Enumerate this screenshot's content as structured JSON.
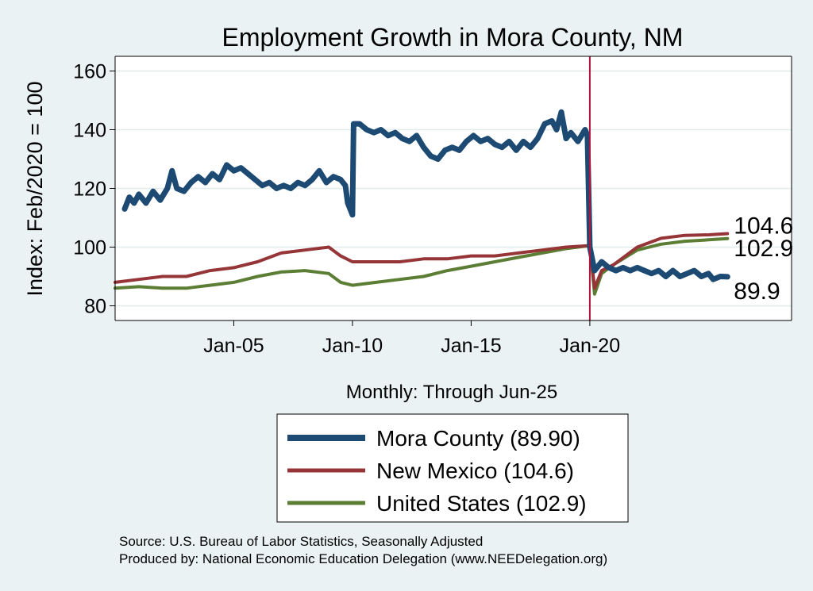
{
  "colors": {
    "title": "#1f3c66",
    "background": "#eaf2f3",
    "plot_background": "#ffffff",
    "grid": "#e1ecee",
    "event_line": "#b5133d"
  },
  "chart_data": {
    "type": "line",
    "title": "Employment Growth in Mora  County, NM",
    "xlabel": "Monthly: Through Jun-25",
    "ylabel": "Index: Feb/2020 = 100",
    "x_start_year": 2000.0,
    "x_end_year": 2028.0,
    "xlim": [
      2000.0,
      2028.5
    ],
    "ylim": [
      75,
      165
    ],
    "yticks": [
      80,
      100,
      120,
      140,
      160
    ],
    "xticks": [
      {
        "year": 2005.0,
        "label": "Jan-05"
      },
      {
        "year": 2010.0,
        "label": "Jan-10"
      },
      {
        "year": 2015.0,
        "label": "Jan-15"
      },
      {
        "year": 2020.0,
        "label": "Jan-20"
      }
    ],
    "event_line_year": 2020.0,
    "series": [
      {
        "name": "Mora  County",
        "legend": "Mora  County (89.90)",
        "end_label": "89.9",
        "color": "#1c4a73",
        "width": 7,
        "points": [
          [
            2000.4,
            113
          ],
          [
            2000.6,
            117
          ],
          [
            2000.8,
            115
          ],
          [
            2001.0,
            118
          ],
          [
            2001.3,
            115
          ],
          [
            2001.6,
            119
          ],
          [
            2001.9,
            116
          ],
          [
            2002.2,
            120
          ],
          [
            2002.4,
            126
          ],
          [
            2002.6,
            120
          ],
          [
            2002.9,
            119
          ],
          [
            2003.2,
            122
          ],
          [
            2003.5,
            124
          ],
          [
            2003.8,
            122
          ],
          [
            2004.1,
            125
          ],
          [
            2004.4,
            123
          ],
          [
            2004.7,
            128
          ],
          [
            2005.0,
            126
          ],
          [
            2005.3,
            127
          ],
          [
            2005.6,
            125
          ],
          [
            2005.9,
            123
          ],
          [
            2006.2,
            121
          ],
          [
            2006.5,
            122
          ],
          [
            2006.8,
            120
          ],
          [
            2007.1,
            121
          ],
          [
            2007.4,
            120
          ],
          [
            2007.7,
            122
          ],
          [
            2008.0,
            121
          ],
          [
            2008.3,
            123
          ],
          [
            2008.6,
            126
          ],
          [
            2008.9,
            122
          ],
          [
            2009.2,
            124
          ],
          [
            2009.5,
            123
          ],
          [
            2009.7,
            121
          ],
          [
            2009.8,
            115
          ],
          [
            2010.0,
            111
          ],
          [
            2010.05,
            142
          ],
          [
            2010.3,
            142
          ],
          [
            2010.6,
            140
          ],
          [
            2010.9,
            139
          ],
          [
            2011.2,
            140
          ],
          [
            2011.5,
            138
          ],
          [
            2011.8,
            139
          ],
          [
            2012.1,
            137
          ],
          [
            2012.4,
            136
          ],
          [
            2012.7,
            138
          ],
          [
            2013.0,
            134
          ],
          [
            2013.3,
            131
          ],
          [
            2013.6,
            130
          ],
          [
            2013.9,
            133
          ],
          [
            2014.2,
            134
          ],
          [
            2014.5,
            133
          ],
          [
            2014.8,
            136
          ],
          [
            2015.1,
            138
          ],
          [
            2015.4,
            136
          ],
          [
            2015.7,
            137
          ],
          [
            2016.0,
            135
          ],
          [
            2016.3,
            134
          ],
          [
            2016.6,
            136
          ],
          [
            2016.9,
            133
          ],
          [
            2017.2,
            136
          ],
          [
            2017.5,
            134
          ],
          [
            2017.8,
            137
          ],
          [
            2018.1,
            142
          ],
          [
            2018.4,
            143
          ],
          [
            2018.6,
            140
          ],
          [
            2018.8,
            146
          ],
          [
            2019.0,
            137
          ],
          [
            2019.2,
            139
          ],
          [
            2019.5,
            136
          ],
          [
            2019.8,
            140
          ],
          [
            2019.9,
            138
          ],
          [
            2020.0,
            100
          ],
          [
            2020.2,
            92
          ],
          [
            2020.5,
            95
          ],
          [
            2020.8,
            93
          ],
          [
            2021.1,
            92
          ],
          [
            2021.4,
            93
          ],
          [
            2021.7,
            92
          ],
          [
            2022.0,
            93
          ],
          [
            2022.3,
            92
          ],
          [
            2022.6,
            91
          ],
          [
            2022.9,
            92
          ],
          [
            2023.2,
            90
          ],
          [
            2023.5,
            92
          ],
          [
            2023.8,
            90
          ],
          [
            2024.1,
            91
          ],
          [
            2024.4,
            92
          ],
          [
            2024.7,
            90
          ],
          [
            2025.0,
            91
          ],
          [
            2025.2,
            89
          ],
          [
            2025.5,
            90
          ],
          [
            2025.8,
            89.9
          ]
        ]
      },
      {
        "name": "New Mexico",
        "legend": "New Mexico (104.6)",
        "end_label": "104.6",
        "color": "#963538",
        "width": 4,
        "points": [
          [
            2000.0,
            88
          ],
          [
            2001.0,
            89
          ],
          [
            2002.0,
            90
          ],
          [
            2003.0,
            90
          ],
          [
            2004.0,
            92
          ],
          [
            2005.0,
            93
          ],
          [
            2006.0,
            95
          ],
          [
            2007.0,
            98
          ],
          [
            2008.0,
            99
          ],
          [
            2009.0,
            100
          ],
          [
            2009.5,
            97
          ],
          [
            2010.0,
            95
          ],
          [
            2011.0,
            95
          ],
          [
            2012.0,
            95
          ],
          [
            2013.0,
            96
          ],
          [
            2014.0,
            96
          ],
          [
            2015.0,
            97
          ],
          [
            2016.0,
            97
          ],
          [
            2017.0,
            98
          ],
          [
            2018.0,
            99
          ],
          [
            2019.0,
            100
          ],
          [
            2020.0,
            100.5
          ],
          [
            2020.2,
            86
          ],
          [
            2020.5,
            92
          ],
          [
            2021.0,
            94
          ],
          [
            2022.0,
            100
          ],
          [
            2023.0,
            103
          ],
          [
            2024.0,
            104
          ],
          [
            2025.0,
            104.2
          ],
          [
            2025.8,
            104.6
          ]
        ]
      },
      {
        "name": "United States",
        "legend": "United States (102.9)",
        "end_label": "102.9",
        "color": "#5c7d34",
        "width": 4,
        "points": [
          [
            2000.0,
            86
          ],
          [
            2001.0,
            86.5
          ],
          [
            2002.0,
            86
          ],
          [
            2003.0,
            86
          ],
          [
            2004.0,
            87
          ],
          [
            2005.0,
            88
          ],
          [
            2006.0,
            90
          ],
          [
            2007.0,
            91.5
          ],
          [
            2008.0,
            92
          ],
          [
            2009.0,
            91
          ],
          [
            2009.5,
            88
          ],
          [
            2010.0,
            87
          ],
          [
            2011.0,
            88
          ],
          [
            2012.0,
            89
          ],
          [
            2013.0,
            90
          ],
          [
            2014.0,
            92
          ],
          [
            2015.0,
            93.5
          ],
          [
            2016.0,
            95
          ],
          [
            2017.0,
            96.5
          ],
          [
            2018.0,
            98
          ],
          [
            2019.0,
            99.5
          ],
          [
            2020.0,
            100.5
          ],
          [
            2020.2,
            84
          ],
          [
            2020.5,
            91
          ],
          [
            2021.0,
            94
          ],
          [
            2022.0,
            99
          ],
          [
            2023.0,
            101
          ],
          [
            2024.0,
            102
          ],
          [
            2025.0,
            102.5
          ],
          [
            2025.8,
            102.9
          ]
        ]
      }
    ],
    "footer": [
      "Source: U.S. Bureau of Labor Statistics, Seasonally Adjusted",
      "Produced by: National Economic Education Delegation (www.NEEDelegation.org)"
    ]
  }
}
